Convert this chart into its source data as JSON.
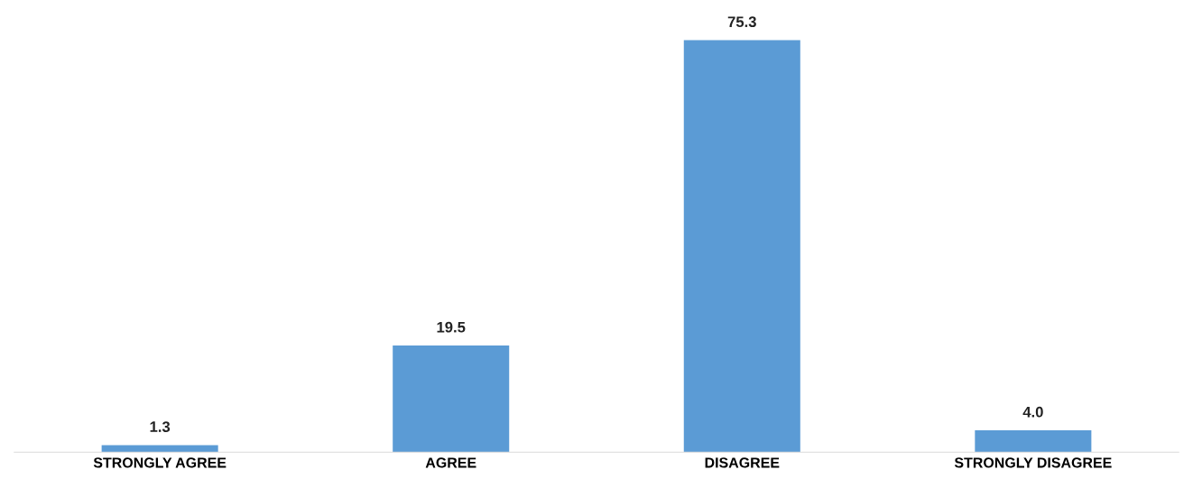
{
  "chart_data": {
    "type": "bar",
    "categories": [
      "STRONGLY AGREE",
      "AGREE",
      "DISAGREE",
      "STRONGLY DISAGREE"
    ],
    "values": [
      1.3,
      19.5,
      75.3,
      4.0
    ],
    "value_labels": [
      "1.3",
      "19.5",
      "75.3",
      "4.0"
    ],
    "color": "#5b9bd5"
  }
}
